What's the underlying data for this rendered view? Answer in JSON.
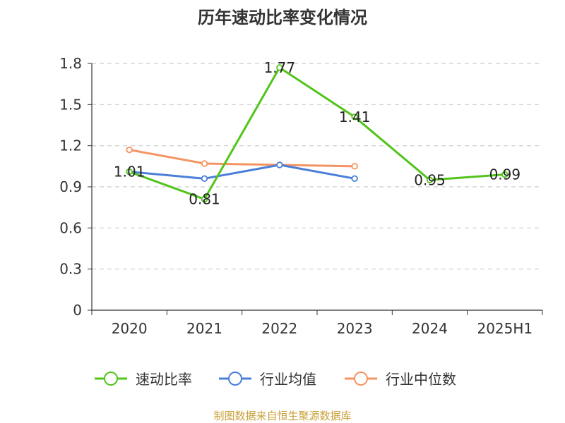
{
  "chart_data": {
    "type": "line",
    "title": "历年速动比率变化情况",
    "categories": [
      "2020",
      "2021",
      "2022",
      "2023",
      "2024",
      "2025H1"
    ],
    "y_ticks": [
      "0",
      "0.3",
      "0.6",
      "0.9",
      "1.2",
      "1.5",
      "1.8"
    ],
    "ylim": [
      0,
      1.8
    ],
    "grid": true,
    "legend_position": "bottom",
    "series": [
      {
        "name": "速动比率",
        "color": "#52c41a",
        "values": [
          1.01,
          0.81,
          1.77,
          1.41,
          0.95,
          0.99
        ],
        "labels": [
          "1.01",
          "0.81",
          "1.77",
          "1.41",
          "0.95",
          "0.99"
        ]
      },
      {
        "name": "行业均值",
        "color": "#4a7fd9",
        "values": [
          1.01,
          0.96,
          1.06,
          0.96,
          null,
          null
        ]
      },
      {
        "name": "行业中位数",
        "color": "#f59462",
        "values": [
          1.17,
          1.07,
          1.06,
          1.05,
          null,
          null
        ]
      }
    ],
    "source": "制图数据来自恒生聚源数据库"
  }
}
